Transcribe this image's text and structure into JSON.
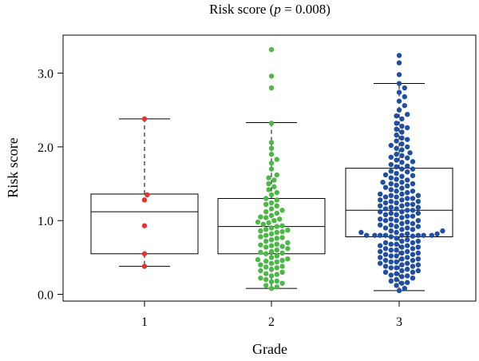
{
  "chart_data": {
    "type": "box-swarm",
    "title_prefix": "Risk score (",
    "title_p": "p",
    "title_suffix": " = 0.008)",
    "xlabel": "Grade",
    "ylabel": "Risk score",
    "categories": [
      "1",
      "2",
      "3"
    ],
    "yticks": [
      0.0,
      1.0,
      2.0,
      3.0
    ],
    "ytick_labels": [
      "0.0",
      "1.0",
      "2.0",
      "3.0"
    ],
    "ylim": [
      -0.08,
      3.55
    ],
    "grid": false,
    "colors": {
      "1": "#e8302f",
      "2": "#4cb846",
      "3": "#1f4ea3"
    },
    "boxes": [
      {
        "category": "1",
        "whisker_low": 0.38,
        "q1": 0.55,
        "median": 1.12,
        "q3": 1.36,
        "whisker_high": 2.38
      },
      {
        "category": "2",
        "whisker_low": 0.08,
        "q1": 0.55,
        "median": 0.92,
        "q3": 1.3,
        "whisker_high": 2.33
      },
      {
        "category": "3",
        "whisker_low": 0.05,
        "q1": 0.78,
        "median": 1.14,
        "q3": 1.71,
        "whisker_high": 2.86
      }
    ],
    "series": [
      {
        "category": "1",
        "values": [
          2.38,
          1.35,
          1.28,
          0.93,
          0.55,
          0.38
        ]
      },
      {
        "category": "2",
        "values": [
          3.32,
          2.96,
          2.8,
          2.32,
          2.06,
          1.98,
          1.9,
          1.83,
          1.78,
          1.7,
          1.62,
          1.58,
          1.55,
          1.5,
          1.46,
          1.42,
          1.38,
          1.35,
          1.3,
          1.28,
          1.24,
          1.2,
          1.16,
          1.14,
          1.1,
          1.07,
          1.04,
          1.02,
          1.0,
          0.98,
          0.95,
          0.93,
          0.92,
          0.9,
          0.88,
          0.86,
          0.84,
          0.82,
          0.8,
          0.78,
          0.76,
          0.74,
          0.72,
          0.7,
          0.68,
          0.66,
          0.64,
          0.62,
          0.6,
          0.58,
          0.56,
          0.55,
          0.52,
          0.5,
          0.48,
          0.46,
          0.44,
          0.42,
          0.4,
          0.38,
          0.36,
          0.34,
          0.3,
          0.28,
          0.25,
          0.22,
          0.2,
          0.18,
          0.15,
          0.12,
          0.1,
          0.08,
          1.12,
          1.05,
          0.97,
          0.87,
          0.77,
          0.67,
          0.57,
          0.47,
          0.37,
          0.27,
          0.17,
          1.22,
          0.85,
          0.65,
          0.45,
          0.32
        ]
      },
      {
        "category": "3",
        "values": [
          3.24,
          3.14,
          2.98,
          2.86,
          2.8,
          2.74,
          2.68,
          2.62,
          2.56,
          2.5,
          2.44,
          2.38,
          2.32,
          2.28,
          2.24,
          2.2,
          2.16,
          2.12,
          2.08,
          2.04,
          2.0,
          1.96,
          1.92,
          1.88,
          1.85,
          1.82,
          1.79,
          1.76,
          1.73,
          1.7,
          1.67,
          1.64,
          1.61,
          1.58,
          1.55,
          1.52,
          1.5,
          1.47,
          1.45,
          1.42,
          1.4,
          1.38,
          1.36,
          1.34,
          1.32,
          1.3,
          1.28,
          1.26,
          1.24,
          1.22,
          1.2,
          1.18,
          1.16,
          1.14,
          1.12,
          1.1,
          1.08,
          1.06,
          1.04,
          1.02,
          1.0,
          0.98,
          0.96,
          0.94,
          0.92,
          0.9,
          0.88,
          0.86,
          0.84,
          0.82,
          0.8,
          0.8,
          0.79,
          0.78,
          0.76,
          0.74,
          0.72,
          0.7,
          0.68,
          0.66,
          0.64,
          0.62,
          0.6,
          0.58,
          0.56,
          0.54,
          0.52,
          0.5,
          0.48,
          0.46,
          0.44,
          0.42,
          0.4,
          0.38,
          0.36,
          0.34,
          0.32,
          0.3,
          0.28,
          0.25,
          0.22,
          0.2,
          0.18,
          0.15,
          0.12,
          0.08,
          0.05,
          2.42,
          2.1,
          1.9,
          1.74,
          1.62,
          1.5,
          1.4,
          1.32,
          1.24,
          1.16,
          1.08,
          1.0,
          0.92,
          0.84,
          0.8,
          0.72,
          0.64,
          0.56,
          0.48,
          0.4,
          0.32,
          0.24,
          0.16,
          1.8,
          1.56,
          1.36,
          1.18,
          1.02,
          0.88,
          0.8,
          0.68,
          0.52,
          0.38,
          0.26,
          1.66,
          1.44,
          1.26,
          1.12,
          0.96,
          0.82,
          0.7,
          0.6,
          0.46,
          2.26,
          2.02,
          1.86,
          1.7,
          1.52,
          1.34,
          1.2,
          1.06,
          0.94,
          0.8,
          0.66,
          0.54,
          0.42,
          0.3,
          1.98,
          1.6,
          1.3,
          1.1,
          0.9,
          0.8,
          0.62,
          0.44,
          1.48,
          1.22,
          1.0,
          0.8,
          0.58,
          0.36,
          1.14,
          0.8,
          0.5,
          1.28,
          0.86
        ]
      }
    ]
  }
}
